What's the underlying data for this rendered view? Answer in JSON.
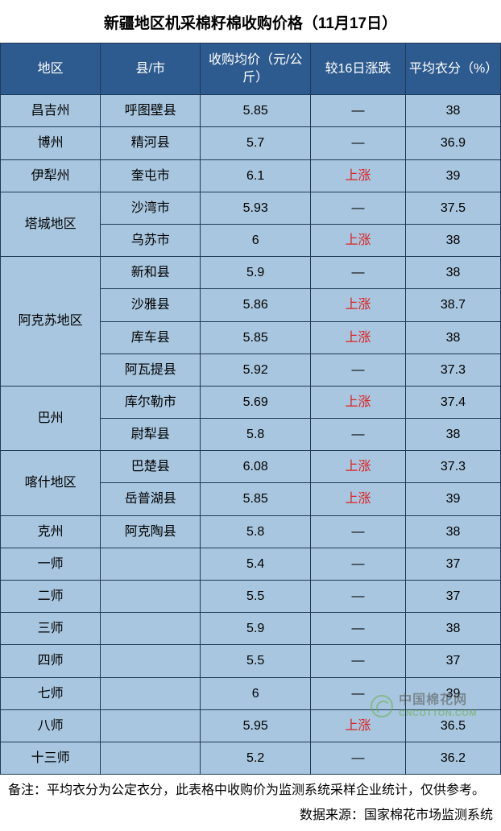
{
  "title": "新疆地区机采棉籽棉收购价格（11月17日）",
  "title_fontsize": 19,
  "columns": [
    "地区",
    "县/市",
    "收购均价（元/公斤）",
    "较16日涨跌",
    "平均衣分（%）"
  ],
  "col_widths": [
    "20%",
    "20%",
    "22%",
    "19%",
    "19%"
  ],
  "header_bg": "#2e5b8f",
  "header_fg": "#ffffff",
  "cell_bg": "#a8c6df",
  "border_color": "#203a5a",
  "rise_color": "#d22222",
  "cell_fontsize": 16,
  "rise_text": "上涨",
  "dash": "—",
  "groups": [
    {
      "region": "昌吉州",
      "rows": [
        {
          "county": "呼图壁县",
          "price": "5.85",
          "change": "—",
          "rate": "38"
        }
      ]
    },
    {
      "region": "博州",
      "rows": [
        {
          "county": "精河县",
          "price": "5.7",
          "change": "—",
          "rate": "36.9"
        }
      ]
    },
    {
      "region": "伊犁州",
      "rows": [
        {
          "county": "奎屯市",
          "price": "6.1",
          "change": "上涨",
          "rate": "39"
        }
      ]
    },
    {
      "region": "塔城地区",
      "rows": [
        {
          "county": "沙湾市",
          "price": "5.93",
          "change": "—",
          "rate": "37.5"
        },
        {
          "county": "乌苏市",
          "price": "6",
          "change": "上涨",
          "rate": "38"
        }
      ]
    },
    {
      "region": "阿克苏地区",
      "rows": [
        {
          "county": "新和县",
          "price": "5.9",
          "change": "—",
          "rate": "38"
        },
        {
          "county": "沙雅县",
          "price": "5.86",
          "change": "上涨",
          "rate": "38.7"
        },
        {
          "county": "库车县",
          "price": "5.85",
          "change": "上涨",
          "rate": "38"
        },
        {
          "county": "阿瓦提县",
          "price": "5.92",
          "change": "—",
          "rate": "37.3"
        }
      ]
    },
    {
      "region": "巴州",
      "rows": [
        {
          "county": "库尔勒市",
          "price": "5.69",
          "change": "上涨",
          "rate": "37.4"
        },
        {
          "county": "尉犁县",
          "price": "5.8",
          "change": "—",
          "rate": "38"
        }
      ]
    },
    {
      "region": "喀什地区",
      "rows": [
        {
          "county": "巴楚县",
          "price": "6.08",
          "change": "上涨",
          "rate": "37.3"
        },
        {
          "county": "岳普湖县",
          "price": "5.85",
          "change": "上涨",
          "rate": "39"
        }
      ]
    },
    {
      "region": "克州",
      "rows": [
        {
          "county": "阿克陶县",
          "price": "5.8",
          "change": "—",
          "rate": "38"
        }
      ]
    },
    {
      "region": "一师",
      "rows": [
        {
          "county": "",
          "price": "5.4",
          "change": "—",
          "rate": "37"
        }
      ]
    },
    {
      "region": "二师",
      "rows": [
        {
          "county": "",
          "price": "5.5",
          "change": "—",
          "rate": "37"
        }
      ]
    },
    {
      "region": "三师",
      "rows": [
        {
          "county": "",
          "price": "5.9",
          "change": "—",
          "rate": "38"
        }
      ]
    },
    {
      "region": "四师",
      "rows": [
        {
          "county": "",
          "price": "5.5",
          "change": "—",
          "rate": "37"
        }
      ]
    },
    {
      "region": "七师",
      "rows": [
        {
          "county": "",
          "price": "6",
          "change": "—",
          "rate": "39"
        }
      ]
    },
    {
      "region": "八师",
      "rows": [
        {
          "county": "",
          "price": "5.95",
          "change": "上涨",
          "rate": "36.5"
        }
      ]
    },
    {
      "region": "十三师",
      "rows": [
        {
          "county": "",
          "price": "5.2",
          "change": "—",
          "rate": "36.2"
        }
      ]
    }
  ],
  "footnote": "备注：平均衣分为公定衣分，此表格中收购价为监测系统采样企业统计，仅供参考。",
  "source_label": "数据来源：国家棉花市场监测系统",
  "footnote_fontsize": 16,
  "watermark": {
    "cn": "中国棉花网",
    "en": "CNCOTTON.COM"
  }
}
